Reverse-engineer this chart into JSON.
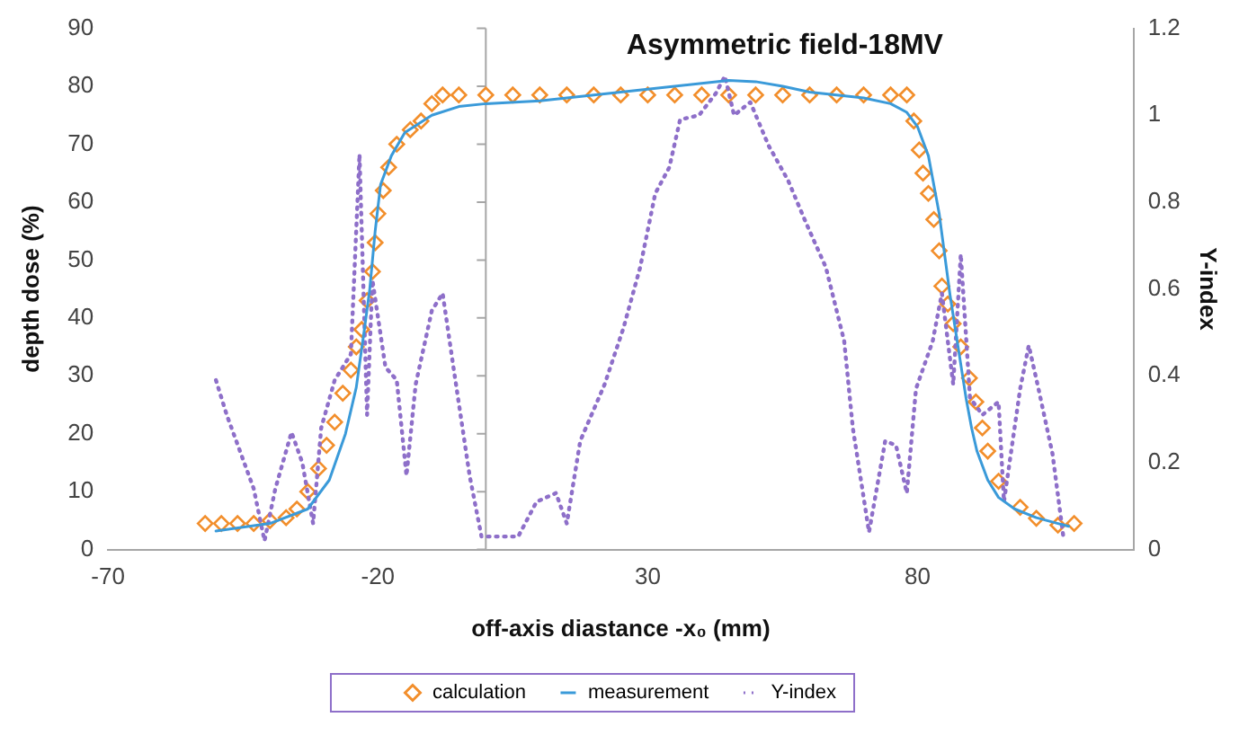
{
  "chart_data": {
    "type": "scatter",
    "title": "Asymmetric field-18MV",
    "xlabel": "off-axis diastance -x₀ (mm)",
    "ylabel": "depth dose (%)",
    "y2label": "Υ-index",
    "xlim": [
      -70,
      120
    ],
    "xticks": [
      -70,
      -20,
      30,
      80
    ],
    "ylim": [
      0,
      90
    ],
    "yticks": [
      0,
      10,
      20,
      30,
      40,
      50,
      60,
      70,
      80,
      90
    ],
    "y2lim": [
      0,
      1.2
    ],
    "y2ticks": [
      0,
      0.2,
      0.4,
      0.6,
      0.8,
      1,
      1.2
    ],
    "legend": "bottom",
    "grid": false,
    "ref_lines": [
      {
        "axis": "x",
        "value": 0,
        "color": "#a6a6a6"
      }
    ],
    "series": [
      {
        "name": "calculation",
        "type": "scatter",
        "marker": "diamond",
        "color": "#f28e2b",
        "x": [
          -52,
          -49,
          -46,
          -43,
          -40,
          -37,
          -35,
          -33,
          -31,
          -29.5,
          -28,
          -26.5,
          -25,
          -24,
          -23,
          -22,
          -21,
          -20.5,
          -20,
          -19,
          -18,
          -16.5,
          -14,
          -12,
          -10,
          -8,
          -5,
          0,
          5,
          10,
          15,
          20,
          25,
          30,
          35,
          40,
          45,
          50,
          55,
          60,
          65,
          70,
          75,
          78,
          79.3,
          80.3,
          81,
          82,
          83,
          84,
          84.5,
          85.6,
          86.6,
          88,
          89.6,
          90.8,
          92,
          93,
          95,
          99,
          102,
          106,
          109
        ],
        "values": [
          4.5,
          4.5,
          4.5,
          4.5,
          5,
          5.5,
          7,
          10,
          14,
          18,
          22,
          27,
          31,
          35,
          38,
          43,
          48,
          53,
          58,
          62,
          66,
          70,
          72.5,
          74,
          77,
          78.5,
          78.5,
          78.5,
          78.5,
          78.5,
          78.5,
          78.5,
          78.5,
          78.5,
          78.5,
          78.5,
          78.5,
          78.5,
          78.5,
          78.5,
          78.5,
          78.5,
          78.5,
          78.5,
          74,
          69,
          65,
          61.5,
          57,
          51.6,
          45.5,
          42.4,
          39,
          35,
          29.6,
          25.5,
          21,
          17,
          11.8,
          7.3,
          5.4,
          4.2,
          4.5
        ]
      },
      {
        "name": "measurement",
        "type": "line",
        "marker": "none",
        "line_style": "solid",
        "color": "#3a9ad9",
        "x": [
          -50,
          -40,
          -33,
          -29,
          -26,
          -24,
          -22.5,
          -21.5,
          -20.5,
          -19.5,
          -17.5,
          -15,
          -10,
          -5,
          0,
          10,
          20,
          30,
          40,
          45,
          50,
          55,
          60,
          65,
          70,
          75,
          78,
          80,
          82,
          84,
          85,
          86,
          87,
          88,
          89,
          90,
          91,
          93,
          95,
          98,
          102,
          106,
          108
        ],
        "values": [
          3.2,
          4.5,
          7,
          12,
          20,
          28,
          38,
          45,
          55,
          63,
          68,
          72,
          75,
          76.5,
          77,
          77.5,
          78.5,
          79.5,
          80.5,
          81,
          80.8,
          80,
          79,
          78.5,
          78,
          77,
          75.5,
          73,
          68,
          58,
          51,
          44,
          38,
          32,
          26,
          21,
          17,
          12,
          9,
          7,
          5.5,
          4.5,
          4
        ]
      },
      {
        "name": "Υ-index",
        "type": "line",
        "axis": "y2",
        "marker": "none",
        "line_style": "dotted",
        "color": "#8e6fc9",
        "x": [
          -50,
          -48,
          -43,
          -41,
          -39,
          -36,
          -34,
          -32,
          -30.5,
          -28,
          -25,
          -23.4,
          -22,
          -21,
          -18.6,
          -16.5,
          -14.7,
          -13,
          -10,
          -8,
          -6,
          -3,
          -0.8,
          6,
          9.4,
          13,
          15,
          17.5,
          22,
          25.5,
          28.6,
          31.4,
          34,
          36,
          39.5,
          42.6,
          44.3,
          46,
          49,
          52.4,
          56,
          59.4,
          63,
          66.4,
          68,
          71,
          74,
          76,
          78,
          79.7,
          82.8,
          84.5,
          86.6,
          88,
          89.7,
          92,
          95,
          96,
          99,
          100.6,
          102.4,
          105,
          107
        ],
        "values": [
          0.39,
          0.31,
          0.14,
          0.02,
          0.14,
          0.27,
          0.2,
          0.06,
          0.28,
          0.39,
          0.45,
          0.91,
          0.31,
          0.62,
          0.42,
          0.39,
          0.17,
          0.38,
          0.55,
          0.59,
          0.42,
          0.17,
          0.03,
          0.03,
          0.11,
          0.13,
          0.06,
          0.25,
          0.38,
          0.51,
          0.65,
          0.82,
          0.88,
          0.99,
          1,
          1.05,
          1.09,
          1,
          1.03,
          0.93,
          0.85,
          0.75,
          0.65,
          0.48,
          0.28,
          0.04,
          0.25,
          0.24,
          0.13,
          0.37,
          0.48,
          0.59,
          0.38,
          0.68,
          0.35,
          0.31,
          0.34,
          0.11,
          0.37,
          0.47,
          0.37,
          0.22,
          0.03
        ]
      }
    ]
  }
}
